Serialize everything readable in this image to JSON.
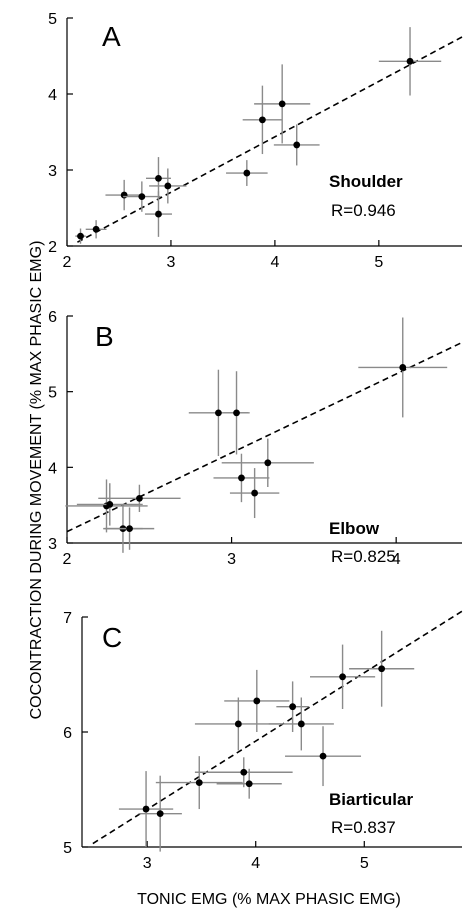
{
  "figure": {
    "ylabel": "COCONTRACTION DURING MOVEMENT (% MAX PHASIC EMG)",
    "xlabel": "TONIC EMG (% MAX PHASIC EMG)"
  },
  "colors": {
    "errorbar": "#8a8a8a",
    "point": "#000000",
    "fit": "#000000"
  },
  "chart_data": [
    {
      "type": "scatter",
      "panel": "A",
      "label": "Shoulder",
      "r_text": "R=0.946",
      "xlim": [
        2,
        5.8
      ],
      "ylim": [
        2,
        5
      ],
      "xticks": [
        "2",
        "3",
        "4",
        "5"
      ],
      "yticks": [
        "2",
        "3",
        "4",
        "5"
      ],
      "fit": [
        [
          2.1,
          2.05
        ],
        [
          5.8,
          4.75
        ]
      ],
      "points": [
        {
          "x": 2.13,
          "y": 2.13,
          "xerr": 0.05,
          "yerr": 0.1
        },
        {
          "x": 2.28,
          "y": 2.22,
          "xerr": 0.1,
          "yerr": 0.12
        },
        {
          "x": 2.55,
          "y": 2.67,
          "xerr": 0.18,
          "yerr": 0.2
        },
        {
          "x": 2.72,
          "y": 2.65,
          "xerr": 0.18,
          "yerr": 0.2
        },
        {
          "x": 2.88,
          "y": 2.89,
          "xerr": 0.12,
          "yerr": 0.28
        },
        {
          "x": 2.88,
          "y": 2.42,
          "xerr": 0.13,
          "yerr": 0.3
        },
        {
          "x": 2.97,
          "y": 2.79,
          "xerr": 0.18,
          "yerr": 0.23
        },
        {
          "x": 3.73,
          "y": 2.96,
          "xerr": 0.2,
          "yerr": 0.17
        },
        {
          "x": 3.88,
          "y": 3.66,
          "xerr": 0.19,
          "yerr": 0.45
        },
        {
          "x": 4.07,
          "y": 3.87,
          "xerr": 0.27,
          "yerr": 0.52
        },
        {
          "x": 4.21,
          "y": 3.33,
          "xerr": 0.22,
          "yerr": 0.27
        },
        {
          "x": 5.3,
          "y": 4.43,
          "xerr": 0.3,
          "yerr": 0.45
        }
      ]
    },
    {
      "type": "scatter",
      "panel": "B",
      "label": "Elbow",
      "r_text": "R=0.825",
      "xlim": [
        2,
        4.4
      ],
      "ylim": [
        3,
        6
      ],
      "xticks": [
        "2",
        "3",
        "4"
      ],
      "yticks": [
        "3",
        "4",
        "5",
        "6"
      ],
      "fit": [
        [
          2.0,
          3.15
        ],
        [
          4.4,
          5.65
        ]
      ],
      "points": [
        {
          "x": 2.24,
          "y": 3.49,
          "xerr": 0.25,
          "yerr": 0.35
        },
        {
          "x": 2.26,
          "y": 3.51,
          "xerr": 0.2,
          "yerr": 0.28
        },
        {
          "x": 2.34,
          "y": 3.19,
          "xerr": 0.12,
          "yerr": 0.32
        },
        {
          "x": 2.38,
          "y": 3.19,
          "xerr": 0.15,
          "yerr": 0.28
        },
        {
          "x": 2.44,
          "y": 3.59,
          "xerr": 0.25,
          "yerr": 0.18
        },
        {
          "x": 2.92,
          "y": 4.72,
          "xerr": 0.18,
          "yerr": 0.57
        },
        {
          "x": 3.03,
          "y": 4.72,
          "xerr": 0.08,
          "yerr": 0.55
        },
        {
          "x": 3.06,
          "y": 3.86,
          "xerr": 0.17,
          "yerr": 0.32
        },
        {
          "x": 3.14,
          "y": 3.66,
          "xerr": 0.15,
          "yerr": 0.33
        },
        {
          "x": 3.22,
          "y": 4.06,
          "xerr": 0.28,
          "yerr": 0.32
        },
        {
          "x": 4.04,
          "y": 5.32,
          "xerr": 0.27,
          "yerr": 0.66
        }
      ]
    },
    {
      "type": "scatter",
      "panel": "C",
      "label": "Biarticular",
      "r_text": "R=0.837",
      "xlim": [
        2.4,
        5.9
      ],
      "ylim": [
        5,
        7
      ],
      "xticks": [
        "3",
        "4",
        "5"
      ],
      "yticks": [
        "5",
        "6",
        "7"
      ],
      "fit": [
        [
          2.5,
          5.03
        ],
        [
          5.9,
          7.05
        ]
      ],
      "points": [
        {
          "x": 2.99,
          "y": 5.33,
          "xerr": 0.25,
          "yerr": 0.33
        },
        {
          "x": 3.12,
          "y": 5.29,
          "xerr": 0.2,
          "yerr": 0.33
        },
        {
          "x": 3.48,
          "y": 5.56,
          "xerr": 0.4,
          "yerr": 0.23
        },
        {
          "x": 3.84,
          "y": 6.07,
          "xerr": 0.4,
          "yerr": 0.23
        },
        {
          "x": 3.89,
          "y": 5.65,
          "xerr": 0.45,
          "yerr": 0.13
        },
        {
          "x": 3.94,
          "y": 5.55,
          "xerr": 0.3,
          "yerr": 0.13
        },
        {
          "x": 4.01,
          "y": 6.27,
          "xerr": 0.3,
          "yerr": 0.27
        },
        {
          "x": 4.34,
          "y": 6.22,
          "xerr": 0.15,
          "yerr": 0.22
        },
        {
          "x": 4.42,
          "y": 6.07,
          "xerr": 0.3,
          "yerr": 0.23
        },
        {
          "x": 4.62,
          "y": 5.79,
          "xerr": 0.35,
          "yerr": 0.26
        },
        {
          "x": 4.8,
          "y": 6.48,
          "xerr": 0.3,
          "yerr": 0.28
        },
        {
          "x": 5.16,
          "y": 6.55,
          "xerr": 0.3,
          "yerr": 0.33
        }
      ]
    }
  ]
}
